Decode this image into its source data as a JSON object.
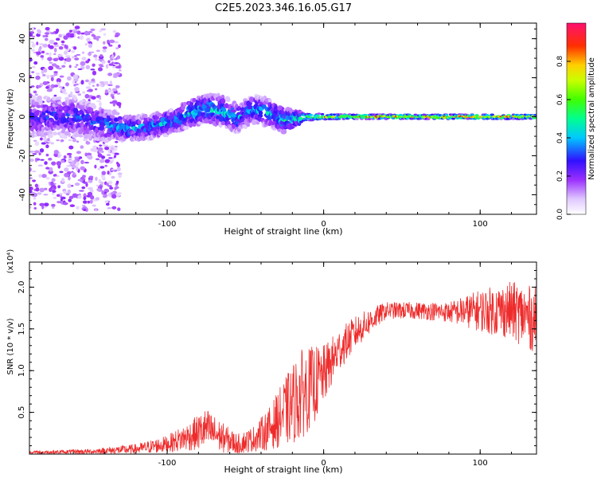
{
  "figure_title": "C2E5.2023.346.16.05.G17",
  "chart_data": [
    {
      "type": "heatmap",
      "xlabel": "Height of straight line (km)",
      "ylabel": "Frequency (Hz)",
      "xlim": [
        -188,
        136
      ],
      "ylim": [
        -50,
        48
      ],
      "x_ticks": [
        -100,
        0,
        100
      ],
      "y_ticks": [
        -40,
        -20,
        0,
        20,
        40
      ],
      "x_tick_labels": [
        "-100",
        "0",
        "100"
      ],
      "y_tick_labels": [
        "-40",
        "-20",
        "0",
        "20",
        "40"
      ],
      "colorbar": {
        "label": "Normalized spectral amplitude",
        "range": [
          0,
          1
        ],
        "ticks": [
          0.0,
          0.2,
          0.4,
          0.6,
          0.8
        ],
        "tick_labels": [
          "0.0",
          "0.2",
          "0.4",
          "0.6",
          "0.8"
        ],
        "colormap": "rainbow (white-violet-blue-cyan-green-yellow-red-magenta)"
      },
      "ridge": {
        "x": [
          -185,
          -160,
          -140,
          -125,
          -110,
          -95,
          -85,
          -75,
          -65,
          -55,
          -45,
          -35,
          -25,
          -18,
          -10,
          0,
          20,
          60,
          100,
          136
        ],
        "center_freq": [
          0,
          0,
          -4,
          -6,
          -5,
          -2,
          2,
          4,
          3,
          -1,
          4,
          2,
          -2,
          -1,
          0,
          0,
          0,
          0,
          0,
          0
        ],
        "spread": [
          10,
          10,
          8,
          6,
          6,
          6,
          7,
          7,
          8,
          7,
          7,
          7,
          6,
          4,
          2,
          1.5,
          1.2,
          1.2,
          1.2,
          1.2
        ],
        "peak_amplitude": [
          0.3,
          0.3,
          0.35,
          0.4,
          0.4,
          0.42,
          0.45,
          0.45,
          0.42,
          0.4,
          0.4,
          0.4,
          0.45,
          0.55,
          0.65,
          0.8,
          0.85,
          0.9,
          0.9,
          0.85
        ]
      },
      "scatter_region": {
        "x": [
          -188,
          -130
        ],
        "freq": [
          -48,
          46
        ]
      }
    },
    {
      "type": "line",
      "xlabel": "Height of straight line (km)",
      "ylabel": "SNR (10 * v/v)",
      "y_scale_label": "(x10⁴)",
      "xlim": [
        -188,
        136
      ],
      "ylim": [
        0,
        2.3
      ],
      "x_ticks": [
        -100,
        0,
        100
      ],
      "y_ticks": [
        0.5,
        1.0,
        1.5,
        2.0
      ],
      "x_tick_labels": [
        "-100",
        "0",
        "100"
      ],
      "y_tick_labels": [
        "0.5",
        "1.0",
        "1.5",
        "2.0"
      ],
      "color": "#ee2b2b",
      "envelope": {
        "x": [
          -188,
          -150,
          -120,
          -100,
          -85,
          -75,
          -65,
          -55,
          -45,
          -35,
          -25,
          -15,
          -5,
          0,
          10,
          20,
          30,
          40,
          60,
          80,
          100,
          120,
          136
        ],
        "mean": [
          0.02,
          0.03,
          0.06,
          0.12,
          0.22,
          0.3,
          0.2,
          0.12,
          0.18,
          0.3,
          0.5,
          0.7,
          0.85,
          0.95,
          1.25,
          1.45,
          1.6,
          1.72,
          1.72,
          1.7,
          1.72,
          1.72,
          1.6
        ],
        "amplitude": [
          0.02,
          0.03,
          0.06,
          0.1,
          0.18,
          0.25,
          0.18,
          0.12,
          0.15,
          0.25,
          0.4,
          0.55,
          0.45,
          0.35,
          0.25,
          0.2,
          0.15,
          0.1,
          0.1,
          0.12,
          0.25,
          0.35,
          0.4
        ]
      }
    }
  ]
}
